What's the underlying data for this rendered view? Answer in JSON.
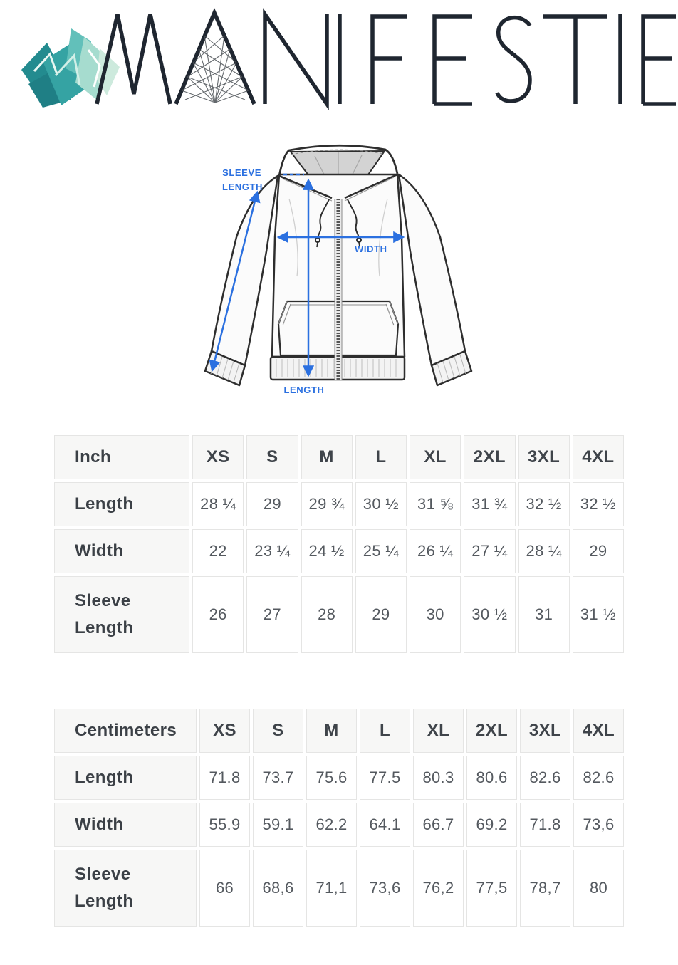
{
  "brand": {
    "name": "MANIFESTIE",
    "logo_icon": "crystal-cluster-icon",
    "logo_color": "#1f2630",
    "icon_colors": [
      "#238b8f",
      "#35a3a3",
      "#62c0ba",
      "#a6dccf",
      "#cdeadd"
    ]
  },
  "diagram": {
    "type": "hoodie-measurement-guide",
    "accent_color": "#2b70e0",
    "labels": {
      "sleeve_line1": "SLEEVE",
      "sleeve_line2": "LENGTH",
      "width": "WIDTH",
      "length": "LENGTH"
    }
  },
  "size_tables": [
    {
      "unit_label": "Inch",
      "columns": [
        "XS",
        "S",
        "M",
        "L",
        "XL",
        "2XL",
        "3XL",
        "4XL"
      ],
      "rows": [
        {
          "label": "Length",
          "values": [
            "28 ¼",
            "29",
            "29 ¾",
            "30 ½",
            "31 ⅝",
            "31 ¾",
            "32 ½",
            "32 ½"
          ]
        },
        {
          "label": "Width",
          "values": [
            "22",
            "23 ¼",
            "24 ½",
            "25 ¼",
            "26 ¼",
            "27 ¼",
            "28 ¼",
            "29"
          ]
        },
        {
          "label": "Sleeve Length",
          "values": [
            "26",
            "27",
            "28",
            "29",
            "30",
            "30 ½",
            "31",
            "31 ½"
          ]
        }
      ]
    },
    {
      "unit_label": "Centimeters",
      "columns": [
        "XS",
        "S",
        "M",
        "L",
        "XL",
        "2XL",
        "3XL",
        "4XL"
      ],
      "rows": [
        {
          "label": "Length",
          "values": [
            "71.8",
            "73.7",
            "75.6",
            "77.5",
            "80.3",
            "80.6",
            "82.6",
            "82.6"
          ]
        },
        {
          "label": "Width",
          "values": [
            "55.9",
            "59.1",
            "62.2",
            "64.1",
            "66.7",
            "69.2",
            "71.8",
            "73,6"
          ]
        },
        {
          "label": "Sleeve Length",
          "values": [
            "66",
            "68,6",
            "71,1",
            "73,6",
            "76,2",
            "77,5",
            "78,7",
            "80"
          ]
        }
      ]
    }
  ]
}
